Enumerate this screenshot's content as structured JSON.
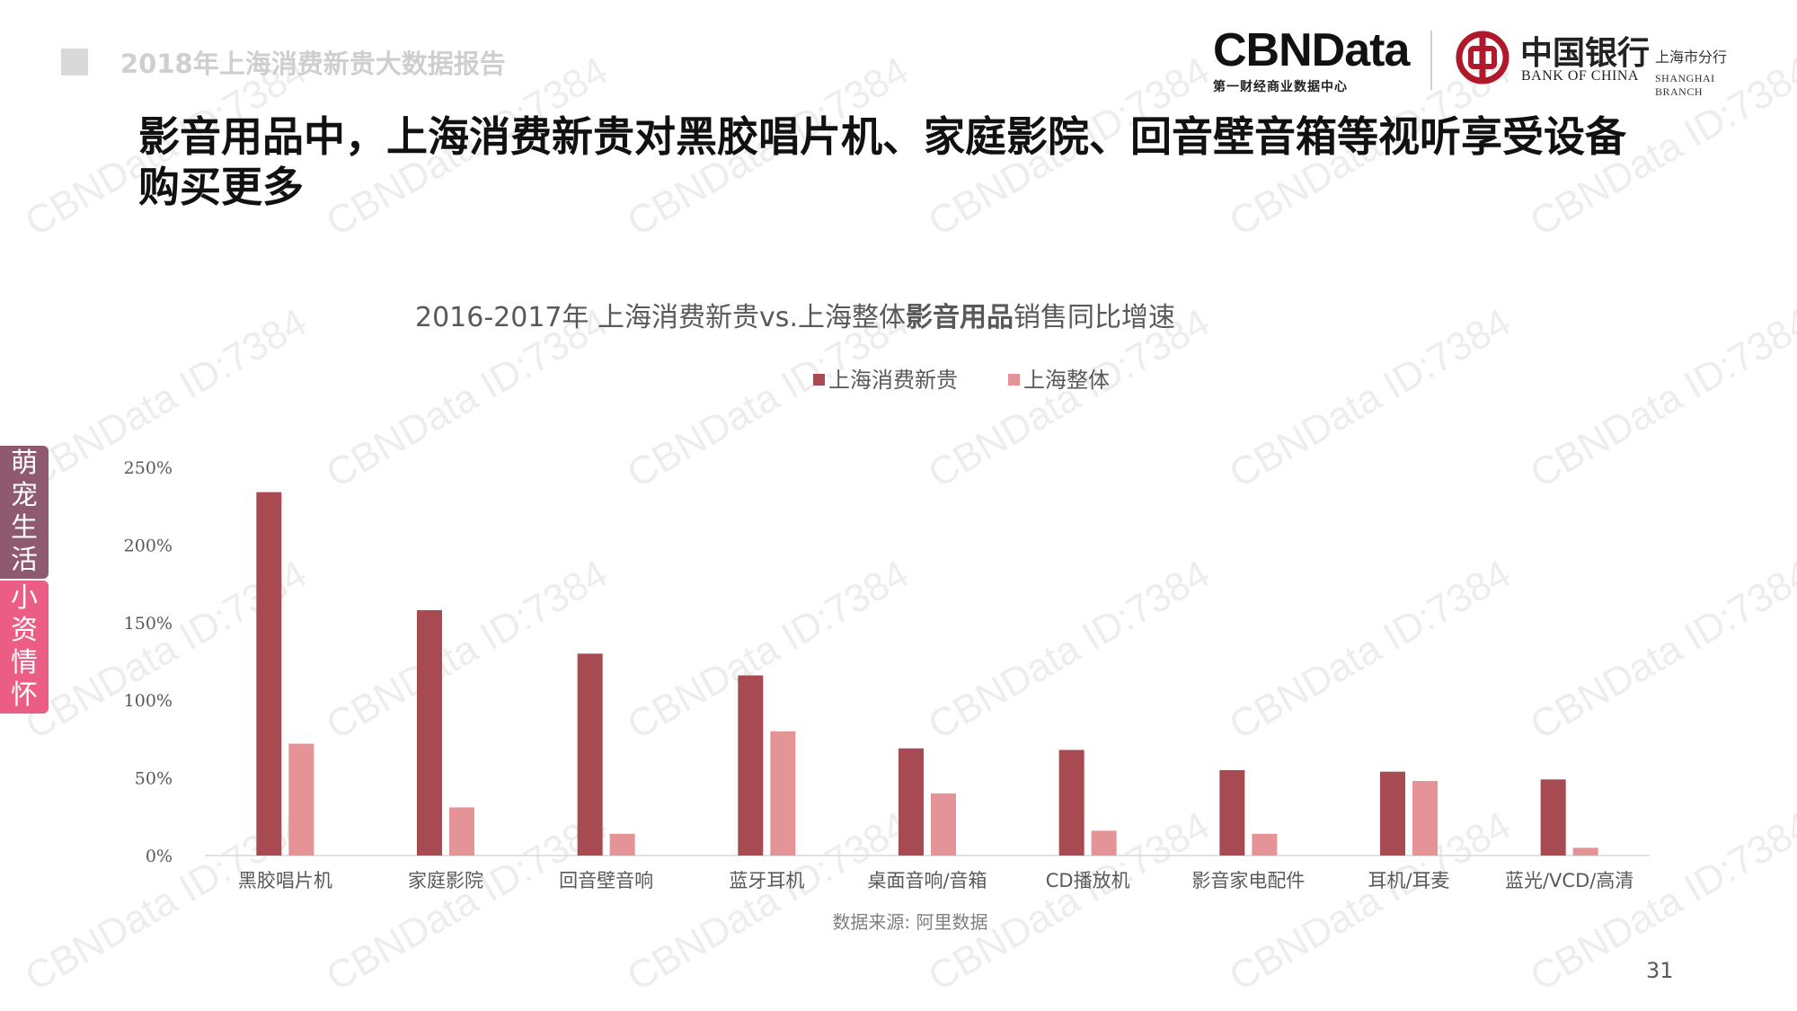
{
  "report": {
    "tag": "2018年上海消费新贵大数据报告"
  },
  "headline": "影音用品中，上海消费新贵对黑胶唱片机、家庭影院、回音壁音箱等视听享受设备购买更多",
  "brand": {
    "cbn_logo": "CBNData",
    "cbn_sub": "第一财经商业数据中心",
    "boc_cn": "中国银行",
    "boc_en": "BANK OF CHINA",
    "branch_cn": "上海市分行",
    "branch_en": "SHANGHAI  BRANCH"
  },
  "side_tabs": {
    "top": [
      "萌",
      "宠",
      "生",
      "活"
    ],
    "bottom": [
      "小",
      "资",
      "情",
      "怀"
    ]
  },
  "chart_data": {
    "type": "bar",
    "title": {
      "prefix": "2016-2017年 上海消费新贵vs.上海整体",
      "bold": "影音用品",
      "suffix": "销售同比增速"
    },
    "categories": [
      "黑胶唱片机",
      "家庭影院",
      "回音壁音响",
      "蓝牙耳机",
      "桌面音响/音箱",
      "CD播放机",
      "影音家电配件",
      "耳机/耳麦",
      "蓝光/VCD/高清"
    ],
    "series": [
      {
        "name": "上海消费新贵",
        "color": "#a84a52",
        "values": [
          234,
          158,
          130,
          116,
          69,
          68,
          55,
          54,
          49
        ]
      },
      {
        "name": "上海整体",
        "color": "#e49496",
        "values": [
          72,
          31,
          14,
          80,
          40,
          16,
          14,
          48,
          5
        ]
      }
    ],
    "y_ticks": [
      "0%",
      "50%",
      "100%",
      "150%",
      "200%",
      "250%"
    ],
    "ylim": [
      0,
      250
    ],
    "grid": false,
    "legend_position": "top-center",
    "source": "数据来源: 阿里数据"
  },
  "page_number": "31",
  "watermark": "CBNData ID:7384"
}
